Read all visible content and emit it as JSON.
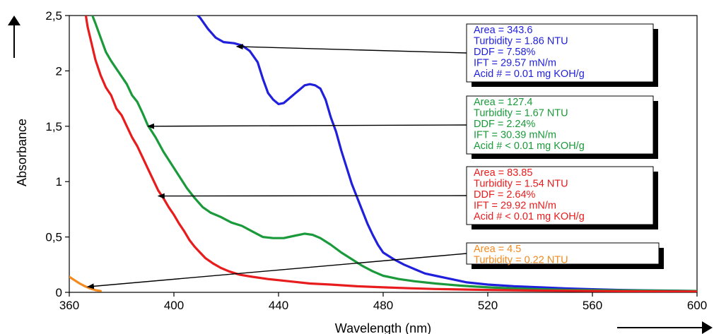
{
  "chart_data": {
    "type": "line",
    "xlabel": "Wavelength (nm)",
    "ylabel": "Absorbance",
    "xlim": [
      360,
      600
    ],
    "ylim": [
      0,
      2.5
    ],
    "x_ticks": [
      360,
      400,
      440,
      480,
      520,
      560,
      600
    ],
    "y_ticks": [
      "0",
      "0,5",
      "1",
      "1,5",
      "2",
      "2,5"
    ],
    "y_tick_values": [
      0,
      0.5,
      1,
      1.5,
      2,
      2.5
    ],
    "grid": false,
    "series": [
      {
        "color": "#1f1fdc",
        "points": [
          [
            407,
            2.55
          ],
          [
            410,
            2.48
          ],
          [
            413,
            2.38
          ],
          [
            416,
            2.3
          ],
          [
            419,
            2.26
          ],
          [
            423,
            2.25
          ],
          [
            426,
            2.23
          ],
          [
            429,
            2.18
          ],
          [
            432,
            2.08
          ],
          [
            434,
            1.93
          ],
          [
            436,
            1.8
          ],
          [
            438,
            1.74
          ],
          [
            440,
            1.7
          ],
          [
            442,
            1.71
          ],
          [
            444,
            1.75
          ],
          [
            446,
            1.79
          ],
          [
            448,
            1.83
          ],
          [
            450,
            1.87
          ],
          [
            452,
            1.88
          ],
          [
            454,
            1.87
          ],
          [
            456,
            1.84
          ],
          [
            458,
            1.74
          ],
          [
            460,
            1.58
          ],
          [
            462,
            1.45
          ],
          [
            464,
            1.28
          ],
          [
            466,
            1.13
          ],
          [
            468,
            0.98
          ],
          [
            470,
            0.86
          ],
          [
            472,
            0.74
          ],
          [
            474,
            0.62
          ],
          [
            476,
            0.52
          ],
          [
            478,
            0.43
          ],
          [
            480,
            0.36
          ],
          [
            484,
            0.3
          ],
          [
            488,
            0.25
          ],
          [
            492,
            0.21
          ],
          [
            496,
            0.17
          ],
          [
            500,
            0.15
          ],
          [
            506,
            0.12
          ],
          [
            512,
            0.09
          ],
          [
            520,
            0.07
          ],
          [
            530,
            0.055
          ],
          [
            540,
            0.045
          ],
          [
            550,
            0.035
          ],
          [
            560,
            0.028
          ],
          [
            570,
            0.022
          ],
          [
            580,
            0.018
          ],
          [
            590,
            0.015
          ],
          [
            600,
            0.012
          ]
        ]
      },
      {
        "color": "#1a9a3a",
        "points": [
          [
            368,
            2.55
          ],
          [
            370,
            2.43
          ],
          [
            372,
            2.3
          ],
          [
            374,
            2.17
          ],
          [
            376,
            2.09
          ],
          [
            378,
            2.02
          ],
          [
            380,
            1.95
          ],
          [
            382,
            1.88
          ],
          [
            384,
            1.78
          ],
          [
            386,
            1.72
          ],
          [
            388,
            1.62
          ],
          [
            390,
            1.51
          ],
          [
            393,
            1.4
          ],
          [
            396,
            1.27
          ],
          [
            399,
            1.16
          ],
          [
            402,
            1.05
          ],
          [
            405,
            0.94
          ],
          [
            408,
            0.85
          ],
          [
            411,
            0.77
          ],
          [
            414,
            0.72
          ],
          [
            418,
            0.68
          ],
          [
            422,
            0.63
          ],
          [
            426,
            0.6
          ],
          [
            430,
            0.55
          ],
          [
            434,
            0.5
          ],
          [
            438,
            0.49
          ],
          [
            442,
            0.49
          ],
          [
            446,
            0.51
          ],
          [
            450,
            0.53
          ],
          [
            453,
            0.52
          ],
          [
            456,
            0.49
          ],
          [
            460,
            0.43
          ],
          [
            464,
            0.36
          ],
          [
            468,
            0.3
          ],
          [
            472,
            0.24
          ],
          [
            476,
            0.19
          ],
          [
            480,
            0.15
          ],
          [
            486,
            0.12
          ],
          [
            492,
            0.1
          ],
          [
            500,
            0.08
          ],
          [
            510,
            0.06
          ],
          [
            520,
            0.045
          ],
          [
            530,
            0.035
          ],
          [
            540,
            0.028
          ],
          [
            550,
            0.022
          ],
          [
            560,
            0.02
          ],
          [
            570,
            0.018
          ],
          [
            580,
            0.016
          ],
          [
            590,
            0.014
          ],
          [
            600,
            0.012
          ]
        ]
      },
      {
        "color": "#e81c1c",
        "points": [
          [
            366,
            2.55
          ],
          [
            367,
            2.4
          ],
          [
            368,
            2.3
          ],
          [
            369,
            2.2
          ],
          [
            370,
            2.1
          ],
          [
            372,
            1.96
          ],
          [
            374,
            1.85
          ],
          [
            376,
            1.78
          ],
          [
            378,
            1.66
          ],
          [
            380,
            1.6
          ],
          [
            382,
            1.5
          ],
          [
            384,
            1.4
          ],
          [
            386,
            1.32
          ],
          [
            388,
            1.22
          ],
          [
            390,
            1.12
          ],
          [
            392,
            1.02
          ],
          [
            394,
            0.92
          ],
          [
            396,
            0.85
          ],
          [
            398,
            0.77
          ],
          [
            400,
            0.7
          ],
          [
            402,
            0.62
          ],
          [
            404,
            0.55
          ],
          [
            406,
            0.47
          ],
          [
            408,
            0.41
          ],
          [
            410,
            0.36
          ],
          [
            412,
            0.31
          ],
          [
            415,
            0.26
          ],
          [
            418,
            0.22
          ],
          [
            421,
            0.19
          ],
          [
            425,
            0.16
          ],
          [
            430,
            0.14
          ],
          [
            436,
            0.12
          ],
          [
            444,
            0.1
          ],
          [
            452,
            0.08
          ],
          [
            460,
            0.07
          ],
          [
            470,
            0.055
          ],
          [
            480,
            0.045
          ],
          [
            490,
            0.037
          ],
          [
            500,
            0.03
          ],
          [
            520,
            0.022
          ],
          [
            540,
            0.016
          ],
          [
            560,
            0.012
          ],
          [
            580,
            0.009
          ],
          [
            600,
            0.007
          ]
        ]
      },
      {
        "color": "#f28a1e",
        "points": [
          [
            360,
            0.14
          ],
          [
            362,
            0.11
          ],
          [
            364,
            0.08
          ],
          [
            366,
            0.055
          ],
          [
            368,
            0.035
          ],
          [
            370,
            0.02
          ],
          [
            372,
            0.012
          ]
        ]
      }
    ],
    "annotations": [
      {
        "lines": [
          "Area = 343.6",
          "Turbidity = 1.86 NTU",
          "DDF = 7.58%",
          "IFT = 29.57 mN/m",
          "Acid # = 0.01 mg KOH/g"
        ],
        "color": "#1f1fdc",
        "arrow_to": [
          424,
          2.22
        ]
      },
      {
        "lines": [
          "Area = 127.4",
          "Turbidity = 1.67 NTU",
          "DDF = 2.24%",
          "IFT = 30.39 mN/m",
          "Acid # < 0.01 mg KOH/g"
        ],
        "color": "#1a9a3a",
        "arrow_to": [
          390,
          1.5
        ]
      },
      {
        "lines": [
          "Area = 83.85",
          "Turbidity = 1.54 NTU",
          "DDF = 2.64%",
          "IFT = 29.92 mN/m",
          "Acid # < 0.01 mg KOH/g"
        ],
        "color": "#e81c1c",
        "arrow_to": [
          394,
          0.87
        ]
      },
      {
        "lines": [
          "Area = 4.5",
          "Turbidity = 0.22 NTU"
        ],
        "color": "#f28a1e",
        "arrow_to": [
          367,
          0.05
        ]
      }
    ]
  }
}
